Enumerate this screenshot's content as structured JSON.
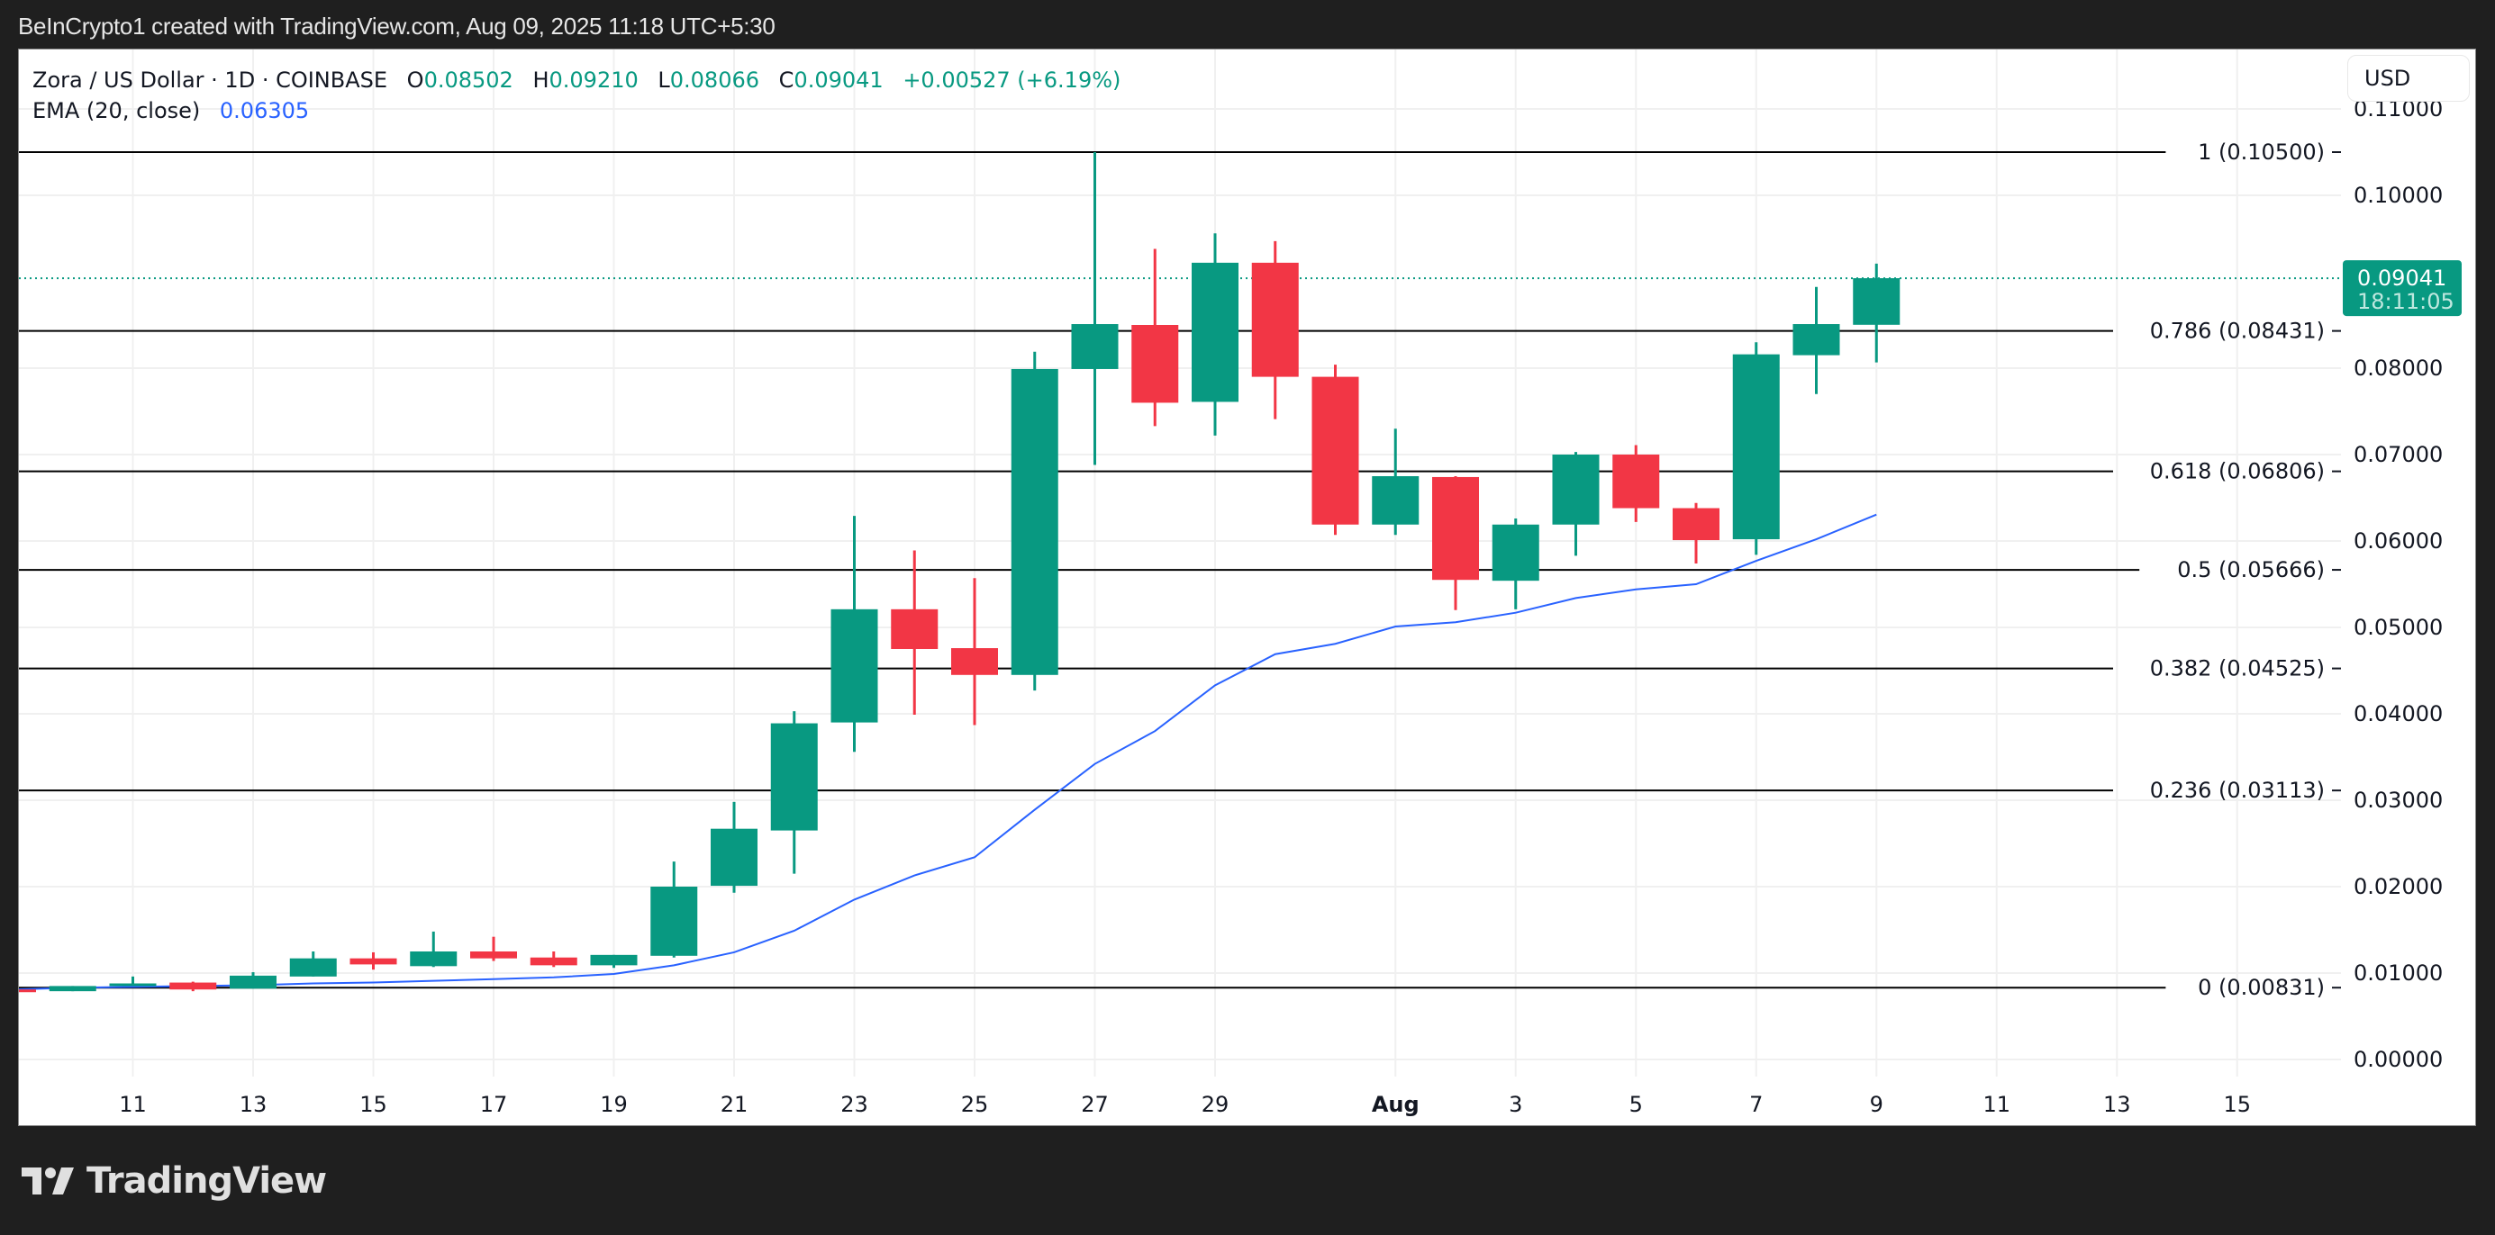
{
  "attribution": "BeInCrypto1 created with TradingView.com, Aug 09, 2025 11:18 UTC+5:30",
  "legend": {
    "symbol": "Zora / US Dollar · 1D · COINBASE",
    "o_label": "O",
    "o_value": "0.08502",
    "h_label": "H",
    "h_value": "0.09210",
    "l_label": "L",
    "l_value": "0.08066",
    "c_label": "C",
    "c_value": "0.09041",
    "change": "+0.00527 (+6.19%)",
    "ema_label": "EMA (20, close)",
    "ema_value": "0.06305"
  },
  "currency_button": "USD",
  "price_badge": {
    "price": "0.09041",
    "countdown": "18:11:05"
  },
  "logo": {
    "icon": "tradingview-logo-icon",
    "text": "TradingView"
  },
  "colors": {
    "up": "#089981",
    "down": "#f23645",
    "ema": "#2962ff",
    "fib": "#000000",
    "grid": "#f0f0f0"
  },
  "chart_data": {
    "type": "candlestick",
    "title": "Zora / US Dollar · 1D · COINBASE",
    "xlabel": "",
    "ylabel": "USD",
    "ylim": [
      0.0,
      0.1125
    ],
    "y_ticks": [
      "0.00000",
      "0.01000",
      "0.02000",
      "0.03000",
      "0.04000",
      "0.05000",
      "0.06000",
      "0.07000",
      "0.08000",
      "0.10000",
      "0.11000"
    ],
    "x_ticks": [
      "11",
      "13",
      "15",
      "17",
      "19",
      "21",
      "23",
      "25",
      "27",
      "29",
      "Aug",
      "3",
      "5",
      "7",
      "9",
      "11",
      "13",
      "15"
    ],
    "grid": true,
    "candles": [
      {
        "date": "Jul 9",
        "o": 0.0081,
        "h": 0.0082,
        "l": 0.0079,
        "c": 0.008
      },
      {
        "date": "Jul 10",
        "o": 0.0079,
        "h": 0.0085,
        "l": 0.0079,
        "c": 0.0085
      },
      {
        "date": "Jul 11",
        "o": 0.0086,
        "h": 0.0096,
        "l": 0.0085,
        "c": 0.0088
      },
      {
        "date": "Jul 12",
        "o": 0.0089,
        "h": 0.009,
        "l": 0.0079,
        "c": 0.0081
      },
      {
        "date": "Jul 13",
        "o": 0.0082,
        "h": 0.0101,
        "l": 0.0082,
        "c": 0.0097
      },
      {
        "date": "Jul 14",
        "o": 0.0096,
        "h": 0.0125,
        "l": 0.0096,
        "c": 0.0117
      },
      {
        "date": "Jul 15",
        "o": 0.0117,
        "h": 0.0124,
        "l": 0.0104,
        "c": 0.011
      },
      {
        "date": "Jul 16",
        "o": 0.0108,
        "h": 0.0148,
        "l": 0.0107,
        "c": 0.0125
      },
      {
        "date": "Jul 17",
        "o": 0.0125,
        "h": 0.0142,
        "l": 0.0114,
        "c": 0.0117
      },
      {
        "date": "Jul 18",
        "o": 0.0118,
        "h": 0.0125,
        "l": 0.0107,
        "c": 0.0109
      },
      {
        "date": "Jul 19",
        "o": 0.0109,
        "h": 0.0121,
        "l": 0.0106,
        "c": 0.0121
      },
      {
        "date": "Jul 20",
        "o": 0.012,
        "h": 0.0229,
        "l": 0.0118,
        "c": 0.02
      },
      {
        "date": "Jul 21",
        "o": 0.0201,
        "h": 0.0298,
        "l": 0.0193,
        "c": 0.0267
      },
      {
        "date": "Jul 22",
        "o": 0.0265,
        "h": 0.0403,
        "l": 0.0215,
        "c": 0.0389
      },
      {
        "date": "Jul 23",
        "o": 0.039,
        "h": 0.0629,
        "l": 0.0356,
        "c": 0.0521
      },
      {
        "date": "Jul 24",
        "o": 0.0521,
        "h": 0.0589,
        "l": 0.0399,
        "c": 0.0475
      },
      {
        "date": "Jul 25",
        "o": 0.0476,
        "h": 0.0557,
        "l": 0.0387,
        "c": 0.0445
      },
      {
        "date": "Jul 26",
        "o": 0.0445,
        "h": 0.0819,
        "l": 0.0427,
        "c": 0.0799
      },
      {
        "date": "Jul 27",
        "o": 0.0799,
        "h": 0.105,
        "l": 0.0688,
        "c": 0.0851
      },
      {
        "date": "Jul 28",
        "o": 0.085,
        "h": 0.0938,
        "l": 0.0733,
        "c": 0.076
      },
      {
        "date": "Jul 29",
        "o": 0.0761,
        "h": 0.0956,
        "l": 0.0722,
        "c": 0.0922
      },
      {
        "date": "Jul 30",
        "o": 0.0922,
        "h": 0.0947,
        "l": 0.0741,
        "c": 0.079
      },
      {
        "date": "Jul 31",
        "o": 0.079,
        "h": 0.0804,
        "l": 0.0607,
        "c": 0.0619
      },
      {
        "date": "Aug 1",
        "o": 0.0619,
        "h": 0.073,
        "l": 0.0607,
        "c": 0.0675
      },
      {
        "date": "Aug 2",
        "o": 0.0674,
        "h": 0.0675,
        "l": 0.052,
        "c": 0.0555
      },
      {
        "date": "Aug 3",
        "o": 0.0554,
        "h": 0.0626,
        "l": 0.0521,
        "c": 0.0619
      },
      {
        "date": "Aug 4",
        "o": 0.0619,
        "h": 0.0703,
        "l": 0.0583,
        "c": 0.07
      },
      {
        "date": "Aug 5",
        "o": 0.07,
        "h": 0.0711,
        "l": 0.0622,
        "c": 0.0638
      },
      {
        "date": "Aug 6",
        "o": 0.0638,
        "h": 0.0644,
        "l": 0.0574,
        "c": 0.0601
      },
      {
        "date": "Aug 7",
        "o": 0.0602,
        "h": 0.083,
        "l": 0.0584,
        "c": 0.0816
      },
      {
        "date": "Aug 8",
        "o": 0.0815,
        "h": 0.0894,
        "l": 0.077,
        "c": 0.0851
      },
      {
        "date": "Aug 9",
        "o": 0.08502,
        "h": 0.0921,
        "l": 0.08066,
        "c": 0.09041
      }
    ],
    "ema": {
      "name": "EMA (20, close)",
      "values": [
        0.0081,
        0.0083,
        0.0084,
        0.0085,
        0.0086,
        0.0088,
        0.0089,
        0.0091,
        0.0093,
        0.0095,
        0.0099,
        0.0109,
        0.0124,
        0.0149,
        0.0185,
        0.0213,
        0.0234,
        0.0289,
        0.0342,
        0.038,
        0.0433,
        0.0469,
        0.0481,
        0.0501,
        0.0506,
        0.0517,
        0.0534,
        0.0544,
        0.055,
        0.0577,
        0.0602,
        0.06305
      ]
    },
    "fib_levels": [
      {
        "ratio": "1",
        "price": 0.105,
        "label": "1 (0.10500)"
      },
      {
        "ratio": "0.786",
        "price": 0.08431,
        "label": "0.786 (0.08431)"
      },
      {
        "ratio": "0.618",
        "price": 0.06806,
        "label": "0.618 (0.06806)"
      },
      {
        "ratio": "0.5",
        "price": 0.05666,
        "label": "0.5 (0.05666)"
      },
      {
        "ratio": "0.382",
        "price": 0.04525,
        "label": "0.382 (0.04525)"
      },
      {
        "ratio": "0.236",
        "price": 0.03113,
        "label": "0.236 (0.03113)"
      },
      {
        "ratio": "0",
        "price": 0.00831,
        "label": "0 (0.00831)"
      }
    ],
    "last_price": 0.09041
  }
}
